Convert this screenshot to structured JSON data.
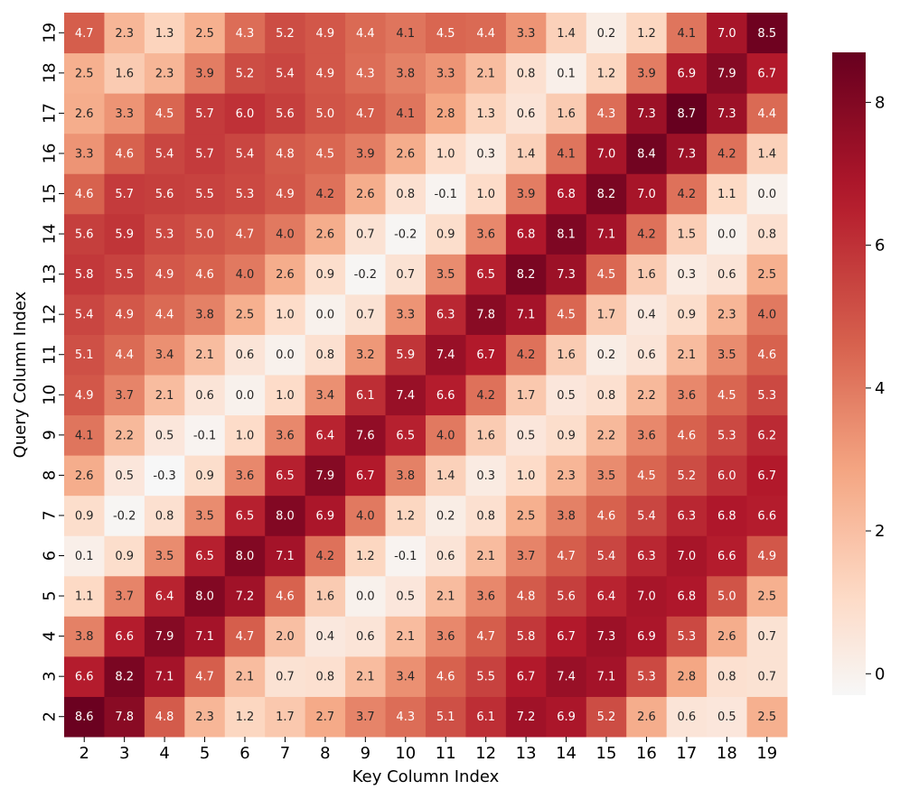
{
  "chart_data": {
    "type": "heatmap",
    "xlabel": "Key Column Index",
    "ylabel": "Query Column Index",
    "x_categories": [
      "2",
      "3",
      "4",
      "5",
      "6",
      "7",
      "8",
      "9",
      "10",
      "11",
      "12",
      "13",
      "14",
      "15",
      "16",
      "17",
      "18",
      "19"
    ],
    "y_categories": [
      "2",
      "3",
      "4",
      "5",
      "6",
      "7",
      "8",
      "9",
      "10",
      "11",
      "12",
      "13",
      "14",
      "15",
      "16",
      "17",
      "18",
      "19"
    ],
    "values": [
      [
        8.6,
        7.8,
        4.8,
        2.3,
        1.2,
        1.7,
        2.7,
        3.7,
        4.3,
        5.1,
        6.1,
        7.2,
        6.9,
        5.2,
        2.6,
        0.6,
        0.5,
        2.5
      ],
      [
        6.6,
        8.2,
        7.1,
        4.7,
        2.1,
        0.7,
        0.8,
        2.1,
        3.4,
        4.6,
        5.5,
        6.7,
        7.4,
        7.1,
        5.3,
        2.8,
        0.8,
        0.7
      ],
      [
        3.8,
        6.6,
        7.9,
        7.1,
        4.7,
        2.0,
        0.4,
        0.6,
        2.1,
        3.6,
        4.7,
        5.8,
        6.7,
        7.3,
        6.9,
        5.3,
        2.6,
        0.7
      ],
      [
        1.1,
        3.7,
        6.4,
        8.0,
        7.2,
        4.6,
        1.6,
        -0.0,
        0.5,
        2.1,
        3.6,
        4.8,
        5.6,
        6.4,
        7.0,
        6.8,
        5.0,
        2.5
      ],
      [
        0.1,
        0.9,
        3.5,
        6.5,
        8.0,
        7.1,
        4.2,
        1.2,
        -0.1,
        0.6,
        2.1,
        3.7,
        4.7,
        5.4,
        6.3,
        7.0,
        6.6,
        4.9
      ],
      [
        0.9,
        -0.2,
        0.8,
        3.5,
        6.5,
        8.0,
        6.9,
        4.0,
        1.2,
        0.2,
        0.8,
        2.5,
        3.8,
        4.6,
        5.4,
        6.3,
        6.8,
        6.6
      ],
      [
        2.6,
        0.5,
        -0.3,
        0.9,
        3.6,
        6.5,
        7.9,
        6.7,
        3.8,
        1.4,
        0.3,
        1.0,
        2.3,
        3.5,
        4.5,
        5.2,
        6.0,
        6.7
      ],
      [
        4.1,
        2.2,
        0.5,
        -0.1,
        1.0,
        3.6,
        6.4,
        7.6,
        6.5,
        4.0,
        1.6,
        0.5,
        0.9,
        2.2,
        3.6,
        4.6,
        5.3,
        6.2
      ],
      [
        4.9,
        3.7,
        2.1,
        0.6,
        0.0,
        1.0,
        3.4,
        6.1,
        7.4,
        6.6,
        4.2,
        1.7,
        0.5,
        0.8,
        2.2,
        3.6,
        4.5,
        5.3
      ],
      [
        5.1,
        4.4,
        3.4,
        2.1,
        0.6,
        -0.0,
        0.8,
        3.2,
        5.9,
        7.4,
        6.7,
        4.2,
        1.6,
        0.2,
        0.6,
        2.1,
        3.5,
        4.6
      ],
      [
        5.4,
        4.9,
        4.4,
        3.8,
        2.5,
        1.0,
        -0.0,
        0.7,
        3.3,
        6.3,
        7.8,
        7.1,
        4.5,
        1.7,
        0.4,
        0.9,
        2.3,
        4.0
      ],
      [
        5.8,
        5.5,
        4.9,
        4.6,
        4.0,
        2.6,
        0.9,
        -0.2,
        0.7,
        3.5,
        6.5,
        8.2,
        7.3,
        4.5,
        1.6,
        0.3,
        0.6,
        2.5
      ],
      [
        5.6,
        5.9,
        5.3,
        5.0,
        4.7,
        4.0,
        2.6,
        0.7,
        -0.2,
        0.9,
        3.6,
        6.8,
        8.1,
        7.1,
        4.2,
        1.5,
        -0.0,
        0.8
      ],
      [
        4.6,
        5.7,
        5.6,
        5.5,
        5.3,
        4.9,
        4.2,
        2.6,
        0.8,
        -0.1,
        1.0,
        3.9,
        6.8,
        8.2,
        7.0,
        4.2,
        1.1,
        -0.0
      ],
      [
        3.3,
        4.6,
        5.4,
        5.7,
        5.4,
        4.8,
        4.5,
        3.9,
        2.6,
        1.0,
        0.3,
        1.4,
        4.1,
        7.0,
        8.4,
        7.3,
        4.2,
        1.4
      ],
      [
        2.6,
        3.3,
        4.5,
        5.7,
        6.0,
        5.6,
        5.0,
        4.7,
        4.1,
        2.8,
        1.3,
        0.6,
        1.6,
        4.3,
        7.3,
        8.7,
        7.3,
        4.4
      ],
      [
        2.5,
        1.6,
        2.3,
        3.9,
        5.2,
        5.4,
        4.9,
        4.3,
        3.8,
        3.3,
        2.1,
        0.8,
        0.1,
        1.2,
        3.9,
        6.9,
        7.9,
        6.7
      ],
      [
        4.7,
        2.3,
        1.3,
        2.5,
        4.3,
        5.2,
        4.9,
        4.4,
        4.1,
        4.5,
        4.4,
        3.3,
        1.4,
        0.2,
        1.2,
        4.1,
        7.0,
        8.5
      ]
    ],
    "y_order": "bottom-to-top",
    "colormap": "RdBu_r (positive half)",
    "vmin": -0.3,
    "vmax": 8.7,
    "colorbar_ticks": [
      0,
      2,
      4,
      6,
      8
    ],
    "annotate": true,
    "grid": false
  }
}
